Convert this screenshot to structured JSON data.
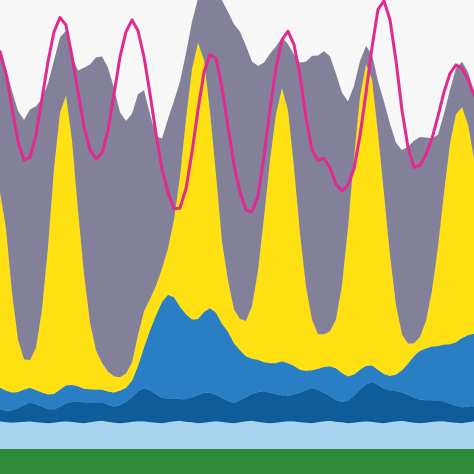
{
  "chart_data": {
    "type": "area",
    "stacked": true,
    "x": [
      0,
      1,
      2,
      3,
      4,
      5,
      6,
      7,
      8,
      9,
      10,
      11,
      12,
      13,
      14,
      15,
      16,
      17,
      18,
      19,
      20,
      21,
      22,
      23,
      24,
      25,
      26,
      27,
      28,
      29,
      30,
      31,
      32,
      33,
      34,
      35,
      36,
      37,
      38,
      39,
      40,
      41,
      42,
      43,
      44,
      45,
      46,
      47,
      48,
      49,
      50,
      51,
      52,
      53,
      54,
      55,
      56,
      57,
      58,
      59,
      60,
      61,
      62,
      63,
      64,
      65,
      66,
      67,
      68,
      69,
      70,
      71,
      72,
      73,
      74,
      75,
      76,
      77,
      78,
      79
    ],
    "ylim": [
      0,
      100
    ],
    "grid": false,
    "legend": "none",
    "series": [
      {
        "color": "#2e8b3a",
        "values": [
          5.3,
          5.3,
          5.3,
          5.3,
          5.3,
          5.3,
          5.3,
          5.3,
          5.3,
          5.3,
          5.3,
          5.3,
          5.3,
          5.3,
          5.3,
          5.3,
          5.3,
          5.3,
          5.3,
          5.3,
          5.3,
          5.3,
          5.3,
          5.3,
          5.3,
          5.3,
          5.3,
          5.3,
          5.3,
          5.3,
          5.3,
          5.3,
          5.3,
          5.3,
          5.3,
          5.3,
          5.3,
          5.3,
          5.3,
          5.3,
          5.3,
          5.3,
          5.3,
          5.3,
          5.3,
          5.3,
          5.3,
          5.3,
          5.3,
          5.3,
          5.3,
          5.3,
          5.3,
          5.3,
          5.3,
          5.3,
          5.3,
          5.3,
          5.3,
          5.3,
          5.3,
          5.3,
          5.3,
          5.3,
          5.3,
          5.3,
          5.3,
          5.3,
          5.3,
          5.3,
          5.3,
          5.3,
          5.3,
          5.3,
          5.3,
          5.3,
          5.3,
          5.3,
          5.3,
          5.3
        ]
      },
      {
        "color": "#a8d4f0",
        "values": [
          5.8,
          5.6,
          5.5,
          5.6,
          5.7,
          5.8,
          5.6,
          5.5,
          5.4,
          5.5,
          5.7,
          5.8,
          5.7,
          5.5,
          5.4,
          5.6,
          5.8,
          5.9,
          5.7,
          5.5,
          5.4,
          5.5,
          5.7,
          5.8,
          5.8,
          5.6,
          5.5,
          5.4,
          5.6,
          5.8,
          5.9,
          5.7,
          5.6,
          5.4,
          5.5,
          5.7,
          5.8,
          5.7,
          5.5,
          5.4,
          5.6,
          5.8,
          5.9,
          5.7,
          5.5,
          5.4,
          5.5,
          5.7,
          5.8,
          5.8,
          5.6,
          5.5,
          5.4,
          5.6,
          5.8,
          5.9,
          5.7,
          5.6,
          5.4,
          5.5,
          5.7,
          5.8,
          5.7,
          5.5,
          5.4,
          5.6,
          5.8,
          5.9,
          5.7,
          5.5,
          5.4,
          5.5,
          5.7,
          5.8,
          5.8,
          5.6,
          5.5,
          5.4,
          5.6,
          5.8
        ]
      },
      {
        "color": "#0e5c99",
        "values": [
          2.6,
          2.4,
          2.6,
          3.0,
          3.5,
          4.0,
          3.8,
          3.4,
          3.0,
          2.8,
          3.2,
          3.8,
          4.2,
          4.5,
          4.4,
          4.2,
          4.0,
          3.9,
          3.6,
          3.4,
          3.8,
          4.4,
          5.2,
          6.3,
          7.0,
          6.8,
          6.0,
          5.4,
          5.0,
          4.8,
          4.6,
          4.8,
          5.3,
          5.9,
          6.3,
          6.1,
          5.6,
          5.0,
          4.6,
          4.3,
          4.6,
          5.1,
          5.7,
          6.3,
          6.6,
          6.5,
          6.0,
          5.6,
          5.4,
          5.7,
          6.2,
          6.9,
          7.4,
          6.9,
          6.0,
          5.2,
          4.6,
          4.3,
          4.8,
          5.7,
          6.8,
          7.8,
          8.4,
          8.0,
          7.3,
          6.8,
          6.4,
          6.0,
          5.7,
          5.3,
          5.0,
          4.8,
          4.6,
          4.4,
          4.2,
          3.9,
          3.6,
          3.4,
          3.3,
          3.2
        ]
      },
      {
        "color": "#2a7fc4",
        "values": [
          4.5,
          4.3,
          3.8,
          3.4,
          3.3,
          3.1,
          3.0,
          3.0,
          3.1,
          3.3,
          3.6,
          3.8,
          3.6,
          3.2,
          2.9,
          2.8,
          2.7,
          2.7,
          2.8,
          3.0,
          3.1,
          3.0,
          3.5,
          5.4,
          8.6,
          12.6,
          16.7,
          20.2,
          21.9,
          21.4,
          19.5,
          17.9,
          16.4,
          16.1,
          17.1,
          17.9,
          17.3,
          15.7,
          14.6,
          12.6,
          10.6,
          8.6,
          7.4,
          6.8,
          6.2,
          6.2,
          6.6,
          7.2,
          6.9,
          6.0,
          4.9,
          4.1,
          3.8,
          4.4,
          5.5,
          6.3,
          6.7,
          6.1,
          5.1,
          4.5,
          4.2,
          3.9,
          3.5,
          3.2,
          3.1,
          3.0,
          3.5,
          4.7,
          6.6,
          8.8,
          10.3,
          10.9,
          11.3,
          11.5,
          12.0,
          12.6,
          13.4,
          14.6,
          15.1,
          15.3
        ]
      },
      {
        "color": "#ffe013",
        "values": [
          41.2,
          34.1,
          21.0,
          11.0,
          6.4,
          5.8,
          8.9,
          17.5,
          31.0,
          47.5,
          58.4,
          61.1,
          51.5,
          37.0,
          24.2,
          14.0,
          8.3,
          5.6,
          4.2,
          3.4,
          2.8,
          3.0,
          3.8,
          6.5,
          7.6,
          6.6,
          6.2,
          7.0,
          9.8,
          16.3,
          27.4,
          41.1,
          52.8,
          58.3,
          53.1,
          41.4,
          29.1,
          17.3,
          10.8,
          7.1,
          6.6,
          7.5,
          11.1,
          18.8,
          30.5,
          42.8,
          52.5,
          57.6,
          53.3,
          41.7,
          28.7,
          17.7,
          10.6,
          7.3,
          6.9,
          7.4,
          10.3,
          18.5,
          31.4,
          45.6,
          57.5,
          63.6,
          60.3,
          49.8,
          37.9,
          25.4,
          14.6,
          7.5,
          4.2,
          2.7,
          2.9,
          5.8,
          11.8,
          20.9,
          32.0,
          42.3,
          48.1,
          48.7,
          44.4,
          36.9
        ]
      },
      {
        "color": "#828199",
        "values": [
          29.8,
          34.0,
          42.6,
          48.3,
          50.5,
          52.9,
          51.0,
          44.5,
          34.6,
          22.9,
          15.9,
          13.7,
          17.8,
          29.6,
          43.5,
          54.5,
          61.8,
          64.7,
          64.1,
          60.8,
          55.9,
          53.3,
          52.5,
          50.8,
          46.7,
          39.0,
          31.5,
          27.5,
          27.3,
          25.1,
          20.1,
          14.0,
          10.0,
          9.3,
          15.6,
          27.6,
          40.1,
          50.9,
          56.7,
          60.2,
          60.6,
          58.0,
          51.6,
          43.2,
          32.7,
          22.5,
          14.3,
          10.7,
          14.0,
          24.0,
          36.1,
          47.5,
          55.7,
          58.8,
          59.7,
          58.0,
          51.8,
          40.6,
          26.6,
          15.3,
          7.6,
          3.9,
          5.3,
          11.1,
          19.5,
          27.8,
          34.3,
          38.9,
          41.6,
          42.7,
          42.2,
          38.7,
          32.1,
          23.7,
          16.7,
          11.4,
          9.7,
          9.6,
          11.1,
          14.2
        ]
      },
      {
        "color": "#e02a8f",
        "kind": "line",
        "values": [
          89.1,
          84.5,
          77.2,
          70.1,
          66.2,
          66.8,
          71.6,
          79.2,
          87.0,
          93.3,
          96.3,
          94.7,
          88.1,
          80.6,
          73.3,
          68.4,
          66.5,
          67.7,
          72.5,
          80.1,
          88.0,
          93.3,
          95.8,
          93.5,
          88.0,
          80.2,
          71.8,
          64.3,
          59.4,
          56.0,
          56.1,
          60.2,
          67.9,
          76.8,
          84.8,
          88.5,
          87.7,
          81.5,
          73.3,
          65.2,
          59.5,
          55.7,
          55.3,
          58.7,
          67.1,
          76.9,
          85.7,
          91.6,
          93.4,
          90.6,
          84.2,
          75.1,
          68.4,
          66.2,
          66.6,
          64.6,
          61.1,
          59.7,
          61.0,
          64.4,
          71.4,
          80.4,
          90.0,
          98.0,
          99.8,
          95.8,
          87.2,
          76.7,
          68.9,
          64.7,
          65.1,
          67.4,
          70.8,
          75.5,
          80.6,
          84.5,
          86.3,
          85.6,
          83.2,
          80.0
        ]
      }
    ]
  }
}
